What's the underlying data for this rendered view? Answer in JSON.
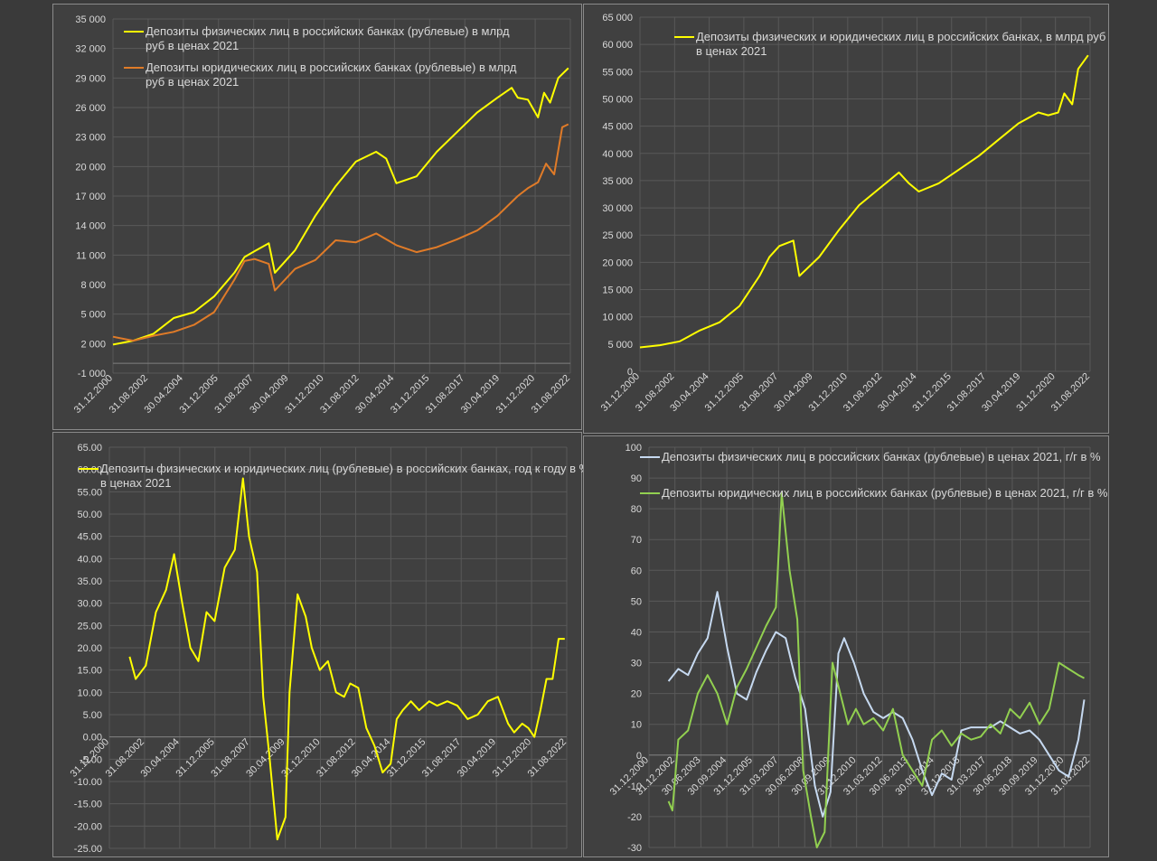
{
  "colors": {
    "background": "#404040",
    "grid": "#595959",
    "text": "#d9d9d9",
    "yellow": "#ffff00",
    "orange": "#e07b28",
    "lightblue": "#c6d9f0",
    "green": "#92d050"
  },
  "chart_data": [
    {
      "type": "line",
      "x_tick_labels": [
        "31.12.2000",
        "31.08.2002",
        "30.04.2004",
        "31.12.2005",
        "31.08.2007",
        "30.04.2009",
        "31.12.2010",
        "31.08.2012",
        "30.04.2014",
        "31.12.2015",
        "31.08.2017",
        "30.04.2019",
        "31.12.2020",
        "31.08.2022"
      ],
      "y_tick_labels": [
        "-1 000",
        "2 000",
        "5 000",
        "8 000",
        "11 000",
        "14 000",
        "17 000",
        "20 000",
        "23 000",
        "26 000",
        "29 000",
        "32 000",
        "35 000"
      ],
      "ylim": [
        -1000,
        35000
      ],
      "grid": true,
      "legend": "top-left",
      "series": [
        {
          "name": "Депозиты физических лиц в российских банках (рублевые) в млрд руб в ценах 2021",
          "color": "#ffff00",
          "x": [
            2001.0,
            2002.0,
            2003.0,
            2004.0,
            2005.0,
            2006.0,
            2007.0,
            2007.5,
            2008.0,
            2008.7,
            2009.0,
            2010.0,
            2011.0,
            2012.0,
            2013.0,
            2014.0,
            2014.5,
            2015.0,
            2016.0,
            2017.0,
            2018.0,
            2019.0,
            2020.0,
            2020.7,
            2021.0,
            2021.5,
            2022.0,
            2022.3,
            2022.6,
            2023.0,
            2023.5
          ],
          "y": [
            1900,
            2300,
            3000,
            4600,
            5200,
            6800,
            9200,
            10800,
            11400,
            12200,
            9200,
            11500,
            15000,
            18000,
            20500,
            21500,
            20800,
            18300,
            19000,
            21500,
            23500,
            25500,
            27000,
            28000,
            27000,
            26800,
            25000,
            27500,
            26500,
            29000,
            30000
          ]
        },
        {
          "name": "Депозиты юридических лиц в российских банках (рублевые) в млрд руб в ценах 2021",
          "color": "#e07b28",
          "x": [
            2001.0,
            2002.0,
            2003.0,
            2004.0,
            2005.0,
            2006.0,
            2007.0,
            2007.5,
            2008.0,
            2008.7,
            2009.0,
            2010.0,
            2011.0,
            2012.0,
            2013.0,
            2014.0,
            2015.0,
            2016.0,
            2017.0,
            2018.0,
            2019.0,
            2020.0,
            2021.0,
            2021.5,
            2022.0,
            2022.4,
            2022.8,
            2023.2,
            2023.5
          ],
          "y": [
            2700,
            2300,
            2800,
            3200,
            3900,
            5200,
            8500,
            10400,
            10600,
            10100,
            7400,
            9600,
            10500,
            12500,
            12300,
            13200,
            12000,
            11300,
            11800,
            12600,
            13500,
            15000,
            17000,
            17800,
            18400,
            20300,
            19200,
            24000,
            24300
          ]
        }
      ]
    },
    {
      "type": "line",
      "x_tick_labels": [
        "31.12.2000",
        "31.08.2002",
        "30.04.2004",
        "31.12.2005",
        "31.08.2007",
        "30.04.2009",
        "31.12.2010",
        "31.08.2012",
        "30.04.2014",
        "31.12.2015",
        "31.08.2017",
        "30.04.2019",
        "31.12.2020",
        "31.08.2022"
      ],
      "y_tick_labels": [
        "0",
        "5 000",
        "10 000",
        "15 000",
        "20 000",
        "25 000",
        "30 000",
        "35 000",
        "40 000",
        "45 000",
        "50 000",
        "55 000",
        "60 000",
        "65 000"
      ],
      "ylim": [
        0,
        65000
      ],
      "grid": true,
      "legend": "top-right",
      "series": [
        {
          "name": "Депозиты физических и юридических лиц в российских банках, в млрд руб в ценах 2021",
          "color": "#ffff00",
          "x": [
            2001.0,
            2002.0,
            2003.0,
            2004.0,
            2005.0,
            2006.0,
            2007.0,
            2007.5,
            2008.0,
            2008.7,
            2009.0,
            2010.0,
            2011.0,
            2012.0,
            2013.0,
            2014.0,
            2014.5,
            2015.0,
            2016.0,
            2017.0,
            2018.0,
            2019.0,
            2020.0,
            2021.0,
            2021.5,
            2022.0,
            2022.3,
            2022.7,
            2023.0,
            2023.5
          ],
          "y": [
            4400,
            4800,
            5500,
            7500,
            9000,
            12000,
            17500,
            21000,
            23000,
            24000,
            17500,
            21000,
            26000,
            30500,
            33500,
            36500,
            34500,
            33000,
            34500,
            37000,
            39500,
            42500,
            45500,
            47500,
            47000,
            47500,
            51000,
            49000,
            55500,
            58000
          ]
        }
      ]
    },
    {
      "type": "line",
      "x_tick_labels": [
        "31.12.2000",
        "31.08.2002",
        "30.04.2004",
        "31.12.2005",
        "31.08.2007",
        "30.04.2009",
        "31.12.2010",
        "31.08.2012",
        "30.04.2014",
        "31.12.2015",
        "31.08.2017",
        "30.04.2019",
        "31.12.2020",
        "31.08.2022"
      ],
      "y_tick_labels": [
        "-25.00",
        "-20.00",
        "-15.00",
        "-10.00",
        "-5.00",
        "0.00",
        "5.00",
        "10.00",
        "15.00",
        "20.00",
        "25.00",
        "30.00",
        "35.00",
        "40.00",
        "45.00",
        "50.00",
        "55.00",
        "60.00",
        "65.00"
      ],
      "ylim": [
        -25,
        65
      ],
      "grid": true,
      "legend": "top",
      "series": [
        {
          "name": "Депозиты физических и юридических лиц (рублевые) в российских банках, год к году в % в ценах 2021",
          "color": "#ffff00",
          "x": [
            2002.0,
            2002.3,
            2002.8,
            2003.3,
            2003.8,
            2004.2,
            2004.6,
            2005.0,
            2005.4,
            2005.8,
            2006.2,
            2006.7,
            2007.2,
            2007.6,
            2007.9,
            2008.3,
            2008.6,
            2008.9,
            2009.3,
            2009.7,
            2009.9,
            2010.3,
            2010.7,
            2011.0,
            2011.4,
            2011.8,
            2012.2,
            2012.6,
            2012.9,
            2013.3,
            2013.7,
            2014.1,
            2014.5,
            2014.9,
            2015.2,
            2015.5,
            2015.9,
            2016.3,
            2016.8,
            2017.2,
            2017.7,
            2018.2,
            2018.7,
            2019.2,
            2019.7,
            2020.2,
            2020.7,
            2021.0,
            2021.4,
            2021.7,
            2022.0,
            2022.3,
            2022.6,
            2022.9,
            2023.2,
            2023.5
          ],
          "y": [
            18,
            13,
            16,
            28,
            33,
            41,
            30,
            20,
            17,
            28,
            26,
            38,
            42,
            58,
            45,
            37,
            9,
            -4,
            -23,
            -18,
            10,
            32,
            27,
            20,
            15,
            17,
            10,
            9,
            12,
            11,
            2,
            -2,
            -8,
            -6,
            4,
            6,
            8,
            6,
            8,
            7,
            8,
            7,
            4,
            5,
            8,
            9,
            3,
            1,
            3,
            2,
            0,
            6,
            13,
            13,
            22,
            22
          ]
        }
      ]
    },
    {
      "type": "line",
      "x_tick_labels": [
        "31.12.2000",
        "31.12.2002",
        "30.06.2003",
        "30.09.2004",
        "31.12.2005",
        "31.03.2007",
        "30.06.2008",
        "30.09.2009",
        "31.12.2010",
        "31.03.2012",
        "30.06.2013",
        "30.09.2014",
        "31.12.2015",
        "31.03.2017",
        "30.06.2018",
        "30.09.2019",
        "31.12.2020",
        "31.03.2022"
      ],
      "y_tick_labels": [
        "-30",
        "-20",
        "-10",
        "0",
        "10",
        "20",
        "30",
        "40",
        "50",
        "60",
        "70",
        "80",
        "90",
        "100"
      ],
      "ylim": [
        -30,
        100
      ],
      "grid": true,
      "legend": "top",
      "series": [
        {
          "name": "Депозиты физических лиц в российских банках (рублевые) в ценах 2021, г/г в %",
          "color": "#c6d9f0",
          "x": [
            2002.0,
            2002.5,
            2003.0,
            2003.5,
            2004.0,
            2004.5,
            2005.0,
            2005.5,
            2006.0,
            2006.5,
            2007.0,
            2007.5,
            2008.0,
            2008.5,
            2009.0,
            2009.5,
            2009.9,
            2010.3,
            2010.7,
            2011.0,
            2011.5,
            2012.0,
            2012.5,
            2013.0,
            2013.5,
            2014.0,
            2014.5,
            2015.0,
            2015.5,
            2016.0,
            2016.5,
            2017.0,
            2017.5,
            2018.0,
            2018.5,
            2019.0,
            2019.5,
            2020.0,
            2020.5,
            2021.0,
            2021.5,
            2022.0,
            2022.5,
            2023.0,
            2023.3
          ],
          "y": [
            24,
            28,
            26,
            33,
            38,
            53,
            35,
            20,
            18,
            27,
            34,
            40,
            38,
            25,
            15,
            -10,
            -20,
            -12,
            33,
            38,
            30,
            20,
            14,
            12,
            14,
            12,
            5,
            -5,
            -13,
            -6,
            -8,
            8,
            9,
            9,
            9,
            11,
            9,
            7,
            8,
            5,
            0,
            -5,
            -7,
            5,
            18
          ]
        },
        {
          "name": "Депозиты юридических лиц в российских банках (рублевые) в ценах 2021, г/г в %",
          "color": "#92d050",
          "x": [
            2002.0,
            2002.2,
            2002.5,
            2003.0,
            2003.5,
            2004.0,
            2004.5,
            2005.0,
            2005.5,
            2006.0,
            2006.5,
            2007.0,
            2007.5,
            2007.8,
            2008.2,
            2008.6,
            2008.9,
            2009.3,
            2009.6,
            2010.0,
            2010.4,
            2010.8,
            2011.2,
            2011.6,
            2012.0,
            2012.5,
            2013.0,
            2013.5,
            2014.0,
            2014.5,
            2015.0,
            2015.5,
            2016.0,
            2016.5,
            2017.0,
            2017.5,
            2018.0,
            2018.5,
            2019.0,
            2019.5,
            2020.0,
            2020.5,
            2021.0,
            2021.5,
            2022.0,
            2022.5,
            2023.0,
            2023.3
          ],
          "y": [
            -15,
            -18,
            5,
            8,
            20,
            26,
            20,
            10,
            22,
            28,
            35,
            42,
            48,
            85,
            60,
            44,
            -5,
            -20,
            -30,
            -25,
            30,
            20,
            10,
            15,
            10,
            12,
            8,
            15,
            0,
            -5,
            -10,
            5,
            8,
            3,
            7,
            5,
            6,
            10,
            7,
            15,
            12,
            17,
            10,
            15,
            30,
            28,
            26,
            25
          ]
        }
      ]
    }
  ]
}
